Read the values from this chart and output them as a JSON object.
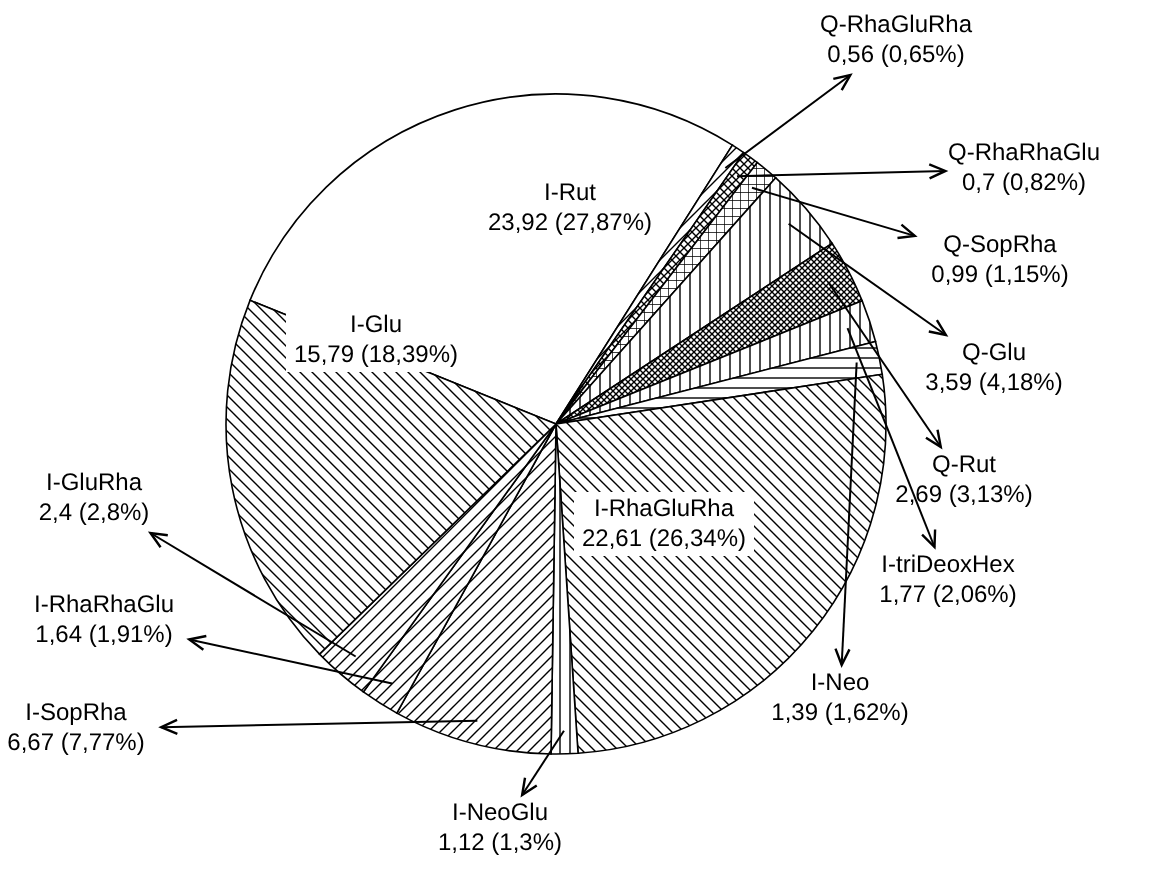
{
  "chart_data": {
    "type": "pie",
    "categories": [
      "I-Rut",
      "Q-RhaGluRha",
      "Q-RhaRhaGlu",
      "Q-SopRha",
      "Q-Glu",
      "Q-Rut",
      "I-triDeoxHex",
      "I-Neo",
      "I-RhaGluRha",
      "I-NeoGlu",
      "I-SopRha",
      "I-RhaRhaGlu",
      "I-GluRha",
      "I-Glu"
    ],
    "values": [
      23.92,
      0.56,
      0.7,
      0.99,
      3.59,
      2.69,
      1.77,
      1.39,
      22.61,
      1.12,
      6.67,
      1.64,
      2.4,
      15.79
    ],
    "value_labels": [
      "23,92 (27,87%)",
      "0,56 (0,65%)",
      "0,7 (0,82%)",
      "0,99 (1,15%)",
      "3,59 (4,18%)",
      "2,69 (3,13%)",
      "1,77 (2,06%)",
      "1,39 (1,62%)",
      "22,61 (26,34%)",
      "1,12 (1,3%)",
      "6,67 (7,77%)",
      "1,64 (1,91%)",
      "2,4 (2,8%)",
      "15,79 (18,39%)"
    ],
    "colors": [
      "#ffffff",
      "#000000",
      "#000000",
      "#000000",
      "#000000",
      "#000000",
      "#000000",
      "#000000",
      "#000000",
      "#000000",
      "#000000",
      "#000000",
      "#000000",
      "#000000"
    ]
  }
}
